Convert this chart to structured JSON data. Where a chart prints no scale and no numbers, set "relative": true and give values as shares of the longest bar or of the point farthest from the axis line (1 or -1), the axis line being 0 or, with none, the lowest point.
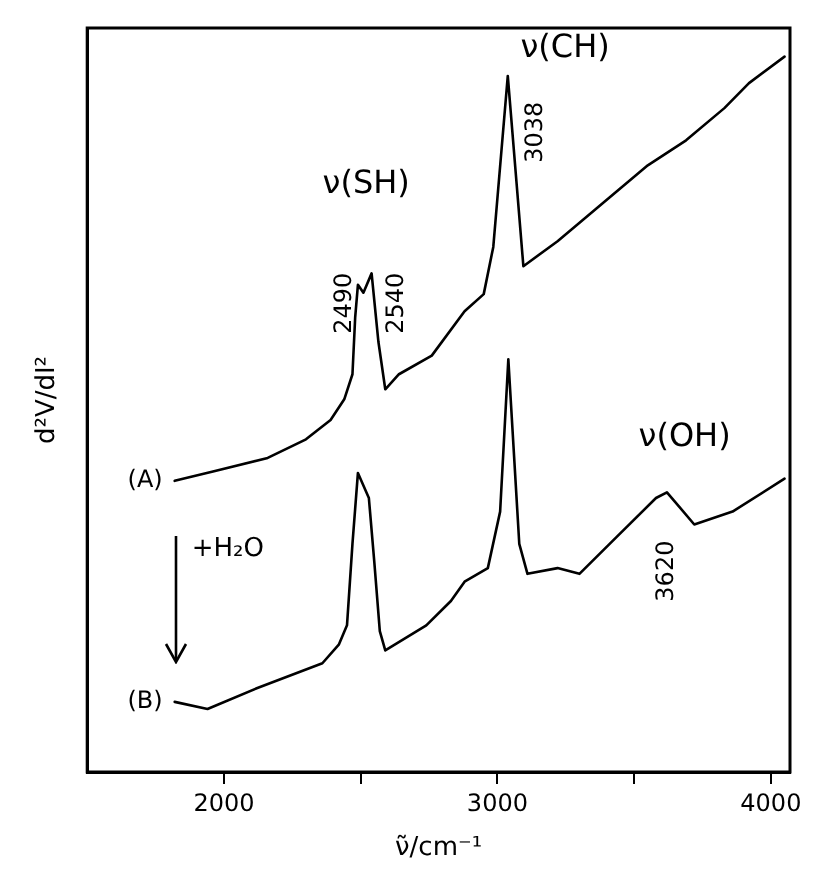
{
  "chart_data": {
    "type": "line",
    "relative": true,
    "xlabel": "ν̃/cm⁻¹",
    "ylabel": "d²V/dI²",
    "xlim": [
      1500,
      4070
    ],
    "xticks": [
      2000,
      {
        "value": 2500,
        "label": null
      },
      3000,
      {
        "value": 3500,
        "label": null
      },
      4000
    ],
    "grid": false,
    "legend": "left",
    "marker": "none",
    "line_style": "solid",
    "series": [
      {
        "name": "(A)",
        "color": "#000000",
        "x": [
          1820,
          1960,
          2160,
          2300,
          2390,
          2440,
          2470,
          2480,
          2490,
          2510,
          2540,
          2565,
          2590,
          2640,
          2760,
          2880,
          2950,
          2985,
          3038,
          3095,
          3220,
          3360,
          3550,
          3690,
          3830,
          3920,
          4050
        ],
        "values": [
          0.407,
          0.42,
          0.439,
          0.465,
          0.492,
          0.521,
          0.556,
          0.636,
          0.681,
          0.67,
          0.697,
          0.601,
          0.535,
          0.556,
          0.582,
          0.644,
          0.668,
          0.734,
          0.973,
          0.707,
          0.742,
          0.787,
          0.848,
          0.883,
          0.928,
          0.963,
          1.0
        ]
      },
      {
        "name": "(B)",
        "color": "#000000",
        "x": [
          1820,
          1940,
          2120,
          2360,
          2420,
          2450,
          2470,
          2490,
          2530,
          2550,
          2570,
          2590,
          2740,
          2830,
          2880,
          2965,
          3010,
          3040,
          3080,
          3110,
          3220,
          3300,
          3440,
          3580,
          3620,
          3720,
          3860,
          4050
        ],
        "values": [
          0.098,
          0.088,
          0.117,
          0.152,
          0.178,
          0.205,
          0.319,
          0.418,
          0.383,
          0.293,
          0.197,
          0.17,
          0.205,
          0.239,
          0.266,
          0.285,
          0.364,
          0.577,
          0.319,
          0.277,
          0.285,
          0.277,
          0.33,
          0.383,
          0.391,
          0.346,
          0.364,
          0.41
        ]
      }
    ],
    "annotations": [
      "ν(SH)",
      "ν(CH)",
      "ν(OH)",
      "+H₂O",
      "2490",
      "2540",
      "3038",
      "3620"
    ]
  }
}
